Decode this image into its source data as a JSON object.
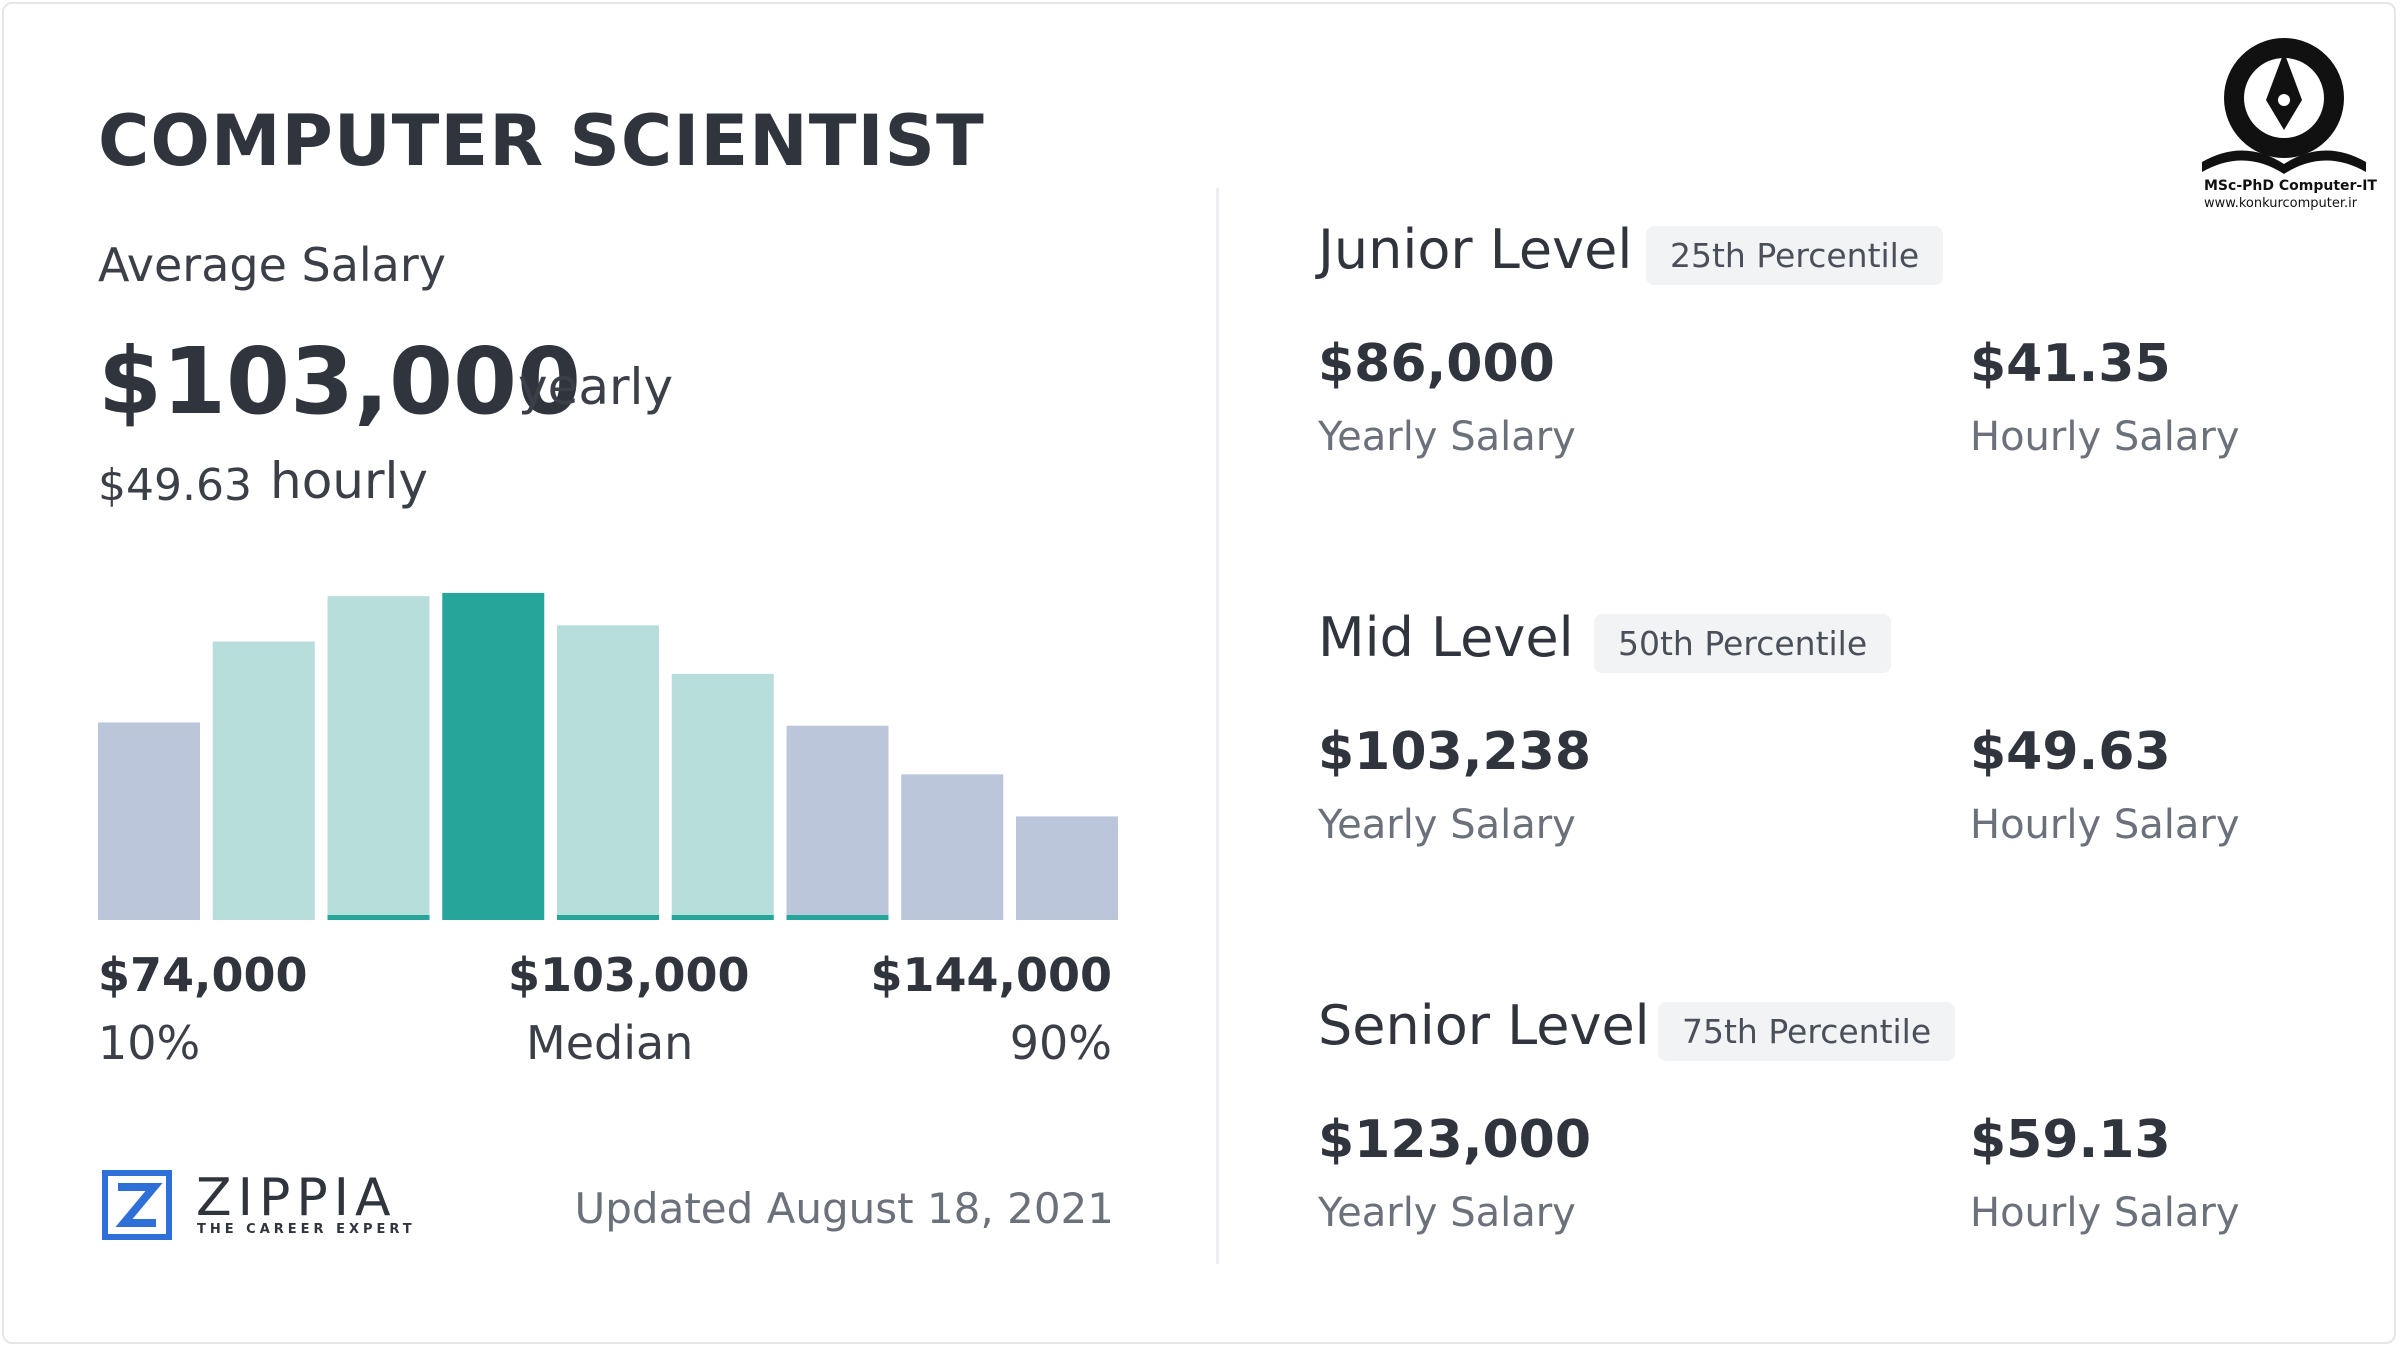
{
  "header": {
    "title": "COMPUTER SCIENTIST",
    "average_label": "Average Salary",
    "average_yearly": "$103,000",
    "yearly_unit": "yearly",
    "average_hourly": "$49.63",
    "hourly_unit": "hourly"
  },
  "chart_data": {
    "type": "bar",
    "title": "",
    "xlabel": "",
    "ylabel": "",
    "categories": [
      "1",
      "2",
      "3",
      "4",
      "5",
      "6",
      "7",
      "8",
      "9"
    ],
    "values": [
      0.61,
      0.86,
      1.0,
      1.01,
      0.91,
      0.76,
      0.6,
      0.45,
      0.32
    ],
    "highlight_index": 3,
    "colors": [
      "#bcc6db",
      "#b7dedb",
      "#b7dedb",
      "#26a69a",
      "#b7dedb",
      "#b7dedb",
      "#bcc6db",
      "#bcc6db",
      "#bcc6db"
    ],
    "underline": [
      false,
      false,
      true,
      false,
      true,
      true,
      true,
      false,
      false
    ],
    "ylim": [
      0,
      1.05
    ],
    "grid": false,
    "axis_labels": [
      {
        "value": "$74,000",
        "label": "10%",
        "align": "left"
      },
      {
        "value": "$103,000",
        "label": "Median",
        "align": "center"
      },
      {
        "value": "$144,000",
        "label": "90%",
        "align": "right"
      }
    ]
  },
  "brand": {
    "name": "ZIPPIA",
    "tagline": "THE CAREER EXPERT",
    "updated": "Updated August 18, 2021",
    "accent_color": "#2f6fd8"
  },
  "levels": [
    {
      "name": "Junior Level",
      "percentile": "25th Percentile",
      "yearly": "$86,000",
      "yearly_caption": "Yearly Salary",
      "hourly": "$41.35",
      "hourly_caption": "Hourly Salary"
    },
    {
      "name": "Mid Level",
      "percentile": "50th Percentile",
      "yearly": "$103,238",
      "yearly_caption": "Yearly Salary",
      "hourly": "$49.63",
      "hourly_caption": "Hourly Salary"
    },
    {
      "name": "Senior Level",
      "percentile": "75th Percentile",
      "yearly": "$123,000",
      "yearly_caption": "Yearly Salary",
      "hourly": "$59.13",
      "hourly_caption": "Hourly Salary"
    }
  ],
  "watermark": {
    "line1": "MSc-PhD Computer-IT",
    "line2": "www.konkurcomputer.ir"
  }
}
